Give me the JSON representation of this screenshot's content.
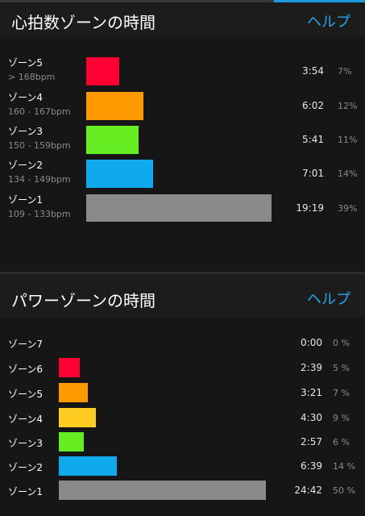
{
  "colors": {
    "accent": "#2aa4e8",
    "zone_red": "#ff0033",
    "zone_orange": "#ff9900",
    "zone_yellow": "#ffcc22",
    "zone_green": "#66ee22",
    "zone_blue": "#11a9ee",
    "zone_gray": "#8a8a8a"
  },
  "heart_rate": {
    "title": "心拍数ゾーンの時間",
    "help_label": "ヘルプ",
    "zones": [
      {
        "name": "ゾーン5",
        "range": "> 168bpm",
        "time": "3:54",
        "percent": "7%",
        "share": 0.07,
        "color": "#ff0033"
      },
      {
        "name": "ゾーン4",
        "range": "160 - 167bpm",
        "time": "6:02",
        "percent": "12%",
        "share": 0.12,
        "color": "#ff9900"
      },
      {
        "name": "ゾーン3",
        "range": "150 - 159bpm",
        "time": "5:41",
        "percent": "11%",
        "share": 0.11,
        "color": "#66ee22"
      },
      {
        "name": "ゾーン2",
        "range": "134 - 149bpm",
        "time": "7:01",
        "percent": "14%",
        "share": 0.14,
        "color": "#11a9ee"
      },
      {
        "name": "ゾーン1",
        "range": "109 - 133bpm",
        "time": "19:19",
        "percent": "39%",
        "share": 0.39,
        "color": "#8a8a8a"
      }
    ]
  },
  "power": {
    "title": "パワーゾーンの時間",
    "help_label": "ヘルプ",
    "zones": [
      {
        "name": "ゾーン7",
        "time": "0:00",
        "percent": "0 %",
        "share": 0.0,
        "color": "#ff0033"
      },
      {
        "name": "ゾーン6",
        "time": "2:39",
        "percent": "5 %",
        "share": 0.05,
        "color": "#ff0033"
      },
      {
        "name": "ゾーン5",
        "time": "3:21",
        "percent": "7 %",
        "share": 0.07,
        "color": "#ff9900"
      },
      {
        "name": "ゾーン4",
        "time": "4:30",
        "percent": "9 %",
        "share": 0.09,
        "color": "#ffcc22"
      },
      {
        "name": "ゾーン3",
        "time": "2:57",
        "percent": "6 %",
        "share": 0.06,
        "color": "#66ee22"
      },
      {
        "name": "ゾーン2",
        "time": "6:39",
        "percent": "14 %",
        "share": 0.14,
        "color": "#11a9ee"
      },
      {
        "name": "ゾーン1",
        "time": "24:42",
        "percent": "50 %",
        "share": 0.5,
        "color": "#8a8a8a"
      }
    ]
  }
}
